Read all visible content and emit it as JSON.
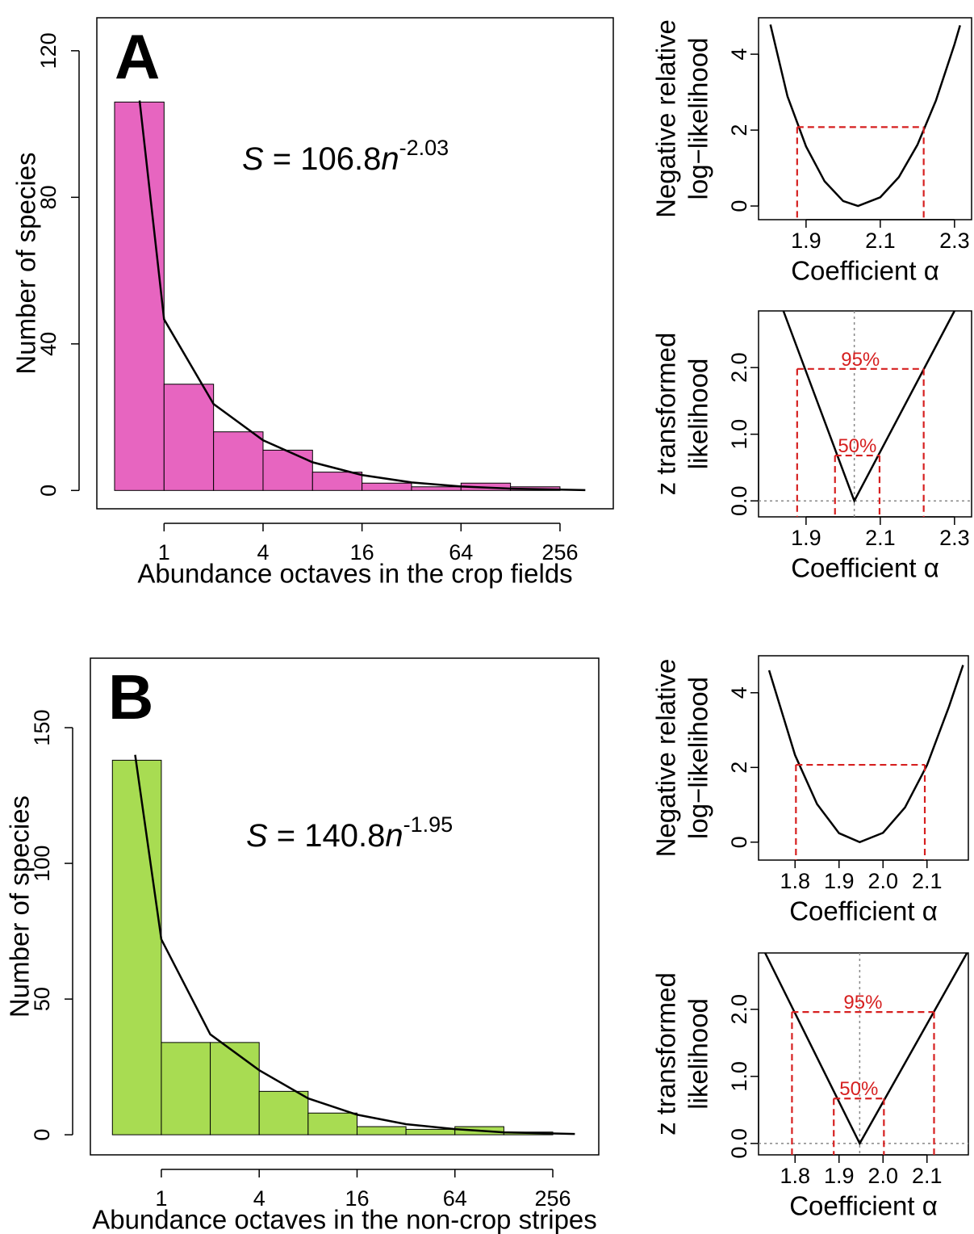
{
  "chart_data": [
    {
      "type": "histogram",
      "panel": "A",
      "ylabel": "Number of species",
      "xlabel": "Abundance octaves in the crop fields",
      "annotation": [
        "S",
        " = 106.8",
        "n",
        "-2.03"
      ],
      "bins": [
        0.5,
        1,
        2,
        4,
        8,
        16,
        32,
        64,
        128,
        256
      ],
      "values": [
        106,
        29,
        16,
        11,
        5,
        2,
        1,
        2,
        1
      ],
      "color": "#e765c0",
      "curve": {
        "x": [
          0.71,
          1,
          2,
          4,
          8,
          16,
          32,
          64,
          128,
          365
        ],
        "values": [
          106.4,
          46.7,
          23.6,
          13.7,
          7.7,
          4.2,
          2.2,
          1.1,
          0.5,
          0.1
        ],
        "color": "#000000"
      },
      "log_x": true,
      "xlim": [
        0.39,
        540
      ],
      "xticks": [
        1,
        4,
        16,
        64,
        256
      ],
      "ylim": [
        -5,
        129
      ],
      "yticks": [
        0,
        40,
        80,
        120
      ]
    },
    {
      "type": "line",
      "ylabel": [
        "Negative relative",
        "log−likelihood"
      ],
      "xlabel": "Coefficient α",
      "x": [
        1.804,
        1.85,
        1.9,
        1.95,
        2.0,
        2.04,
        2.1,
        2.15,
        2.2,
        2.25,
        2.3,
        2.315
      ],
      "values": [
        4.78,
        2.89,
        1.57,
        0.65,
        0.13,
        0,
        0.23,
        0.76,
        1.61,
        2.78,
        4.26,
        4.76
      ],
      "color": "#000000",
      "ci_color": "#d62020",
      "ci_lines": [
        {
          "y": 2.08,
          "x": [
            1.876,
            2.217
          ]
        }
      ],
      "xlim": [
        1.772,
        2.346
      ],
      "xticks": [
        1.9,
        2.1,
        2.3
      ],
      "ylim": [
        -0.36,
        4.96
      ],
      "yticks": [
        0,
        2,
        4
      ]
    },
    {
      "type": "line",
      "ylabel": [
        "z transformed",
        "likelihood"
      ],
      "xlabel": "Coefficient α",
      "x": [
        1.839,
        2.03,
        2.3
      ],
      "values": [
        2.85,
        0,
        2.85
      ],
      "color": "#000000",
      "ci_color": "#d62020",
      "ci_lines": [
        {
          "label": "95%",
          "y": 1.98,
          "x": [
            1.876,
            2.217
          ]
        },
        {
          "label": "50%",
          "y": 0.68,
          "x": [
            1.978,
            2.098
          ]
        }
      ],
      "center": 2.03,
      "ref_color": "#888888",
      "xlim": [
        1.772,
        2.346
      ],
      "xticks": [
        1.9,
        2.1,
        2.3
      ],
      "ylim": [
        -0.24,
        2.85
      ],
      "yticks": [
        {
          "value": 0,
          "label": "0.0"
        },
        {
          "value": 1,
          "label": "1.0"
        },
        {
          "value": 2,
          "label": "2.0"
        }
      ]
    },
    {
      "type": "histogram",
      "panel": "B",
      "ylabel": "Number of species",
      "xlabel": "Abundance octaves in the non-crop stripes",
      "annotation": [
        "S",
        " = 140.8",
        "n",
        "-1.95"
      ],
      "bins": [
        0.5,
        1,
        2,
        4,
        8,
        16,
        32,
        64,
        128,
        256
      ],
      "values": [
        138,
        34,
        34,
        16,
        8,
        3,
        2,
        3,
        1
      ],
      "color": "#a8dc52",
      "curve": {
        "x": [
          0.69,
          1,
          2,
          4,
          8,
          16,
          32,
          64,
          128,
          350
        ],
        "values": [
          140,
          72,
          37,
          23.8,
          13.4,
          7.4,
          3.9,
          2.1,
          0.9,
          0.3
        ],
        "color": "#000000"
      },
      "log_x": true,
      "xlim": [
        0.366,
        491
      ],
      "xticks": [
        1,
        4,
        16,
        64,
        256
      ],
      "ylim": [
        -7.4,
        175.6
      ],
      "yticks": [
        0,
        50,
        100,
        150
      ]
    },
    {
      "type": "line",
      "ylabel": [
        "Negative relative",
        "log−likelihood"
      ],
      "xlabel": "Coefficient α",
      "x": [
        1.741,
        1.8,
        1.85,
        1.9,
        1.947,
        2.0,
        2.05,
        2.1,
        2.15,
        2.182
      ],
      "values": [
        4.6,
        2.33,
        1.02,
        0.24,
        0,
        0.25,
        0.93,
        2.06,
        3.63,
        4.74
      ],
      "color": "#000000",
      "ci_color": "#d62020",
      "ci_lines": [
        {
          "y": 2.07,
          "x": [
            1.802,
            2.095
          ]
        }
      ],
      "xlim": [
        1.717,
        2.194
      ],
      "xticks": [
        1.8,
        1.9,
        {
          "value": 2,
          "label": "2.0"
        },
        2.1
      ],
      "ylim": [
        -0.48,
        4.99
      ],
      "yticks": [
        0,
        2,
        4
      ]
    },
    {
      "type": "line",
      "ylabel": [
        "z transformed",
        "likelihood"
      ],
      "xlabel": "Coefficient α",
      "x": [
        1.732,
        1.947,
        2.191
      ],
      "values": [
        2.84,
        0,
        2.84
      ],
      "color": "#000000",
      "ci_color": "#d62020",
      "ci_lines": [
        {
          "label": "95%",
          "y": 1.96,
          "x": [
            1.793,
            2.116
          ]
        },
        {
          "label": "50%",
          "y": 0.67,
          "x": [
            1.888,
            2.002
          ]
        }
      ],
      "center": 1.947,
      "ref_color": "#888888",
      "xlim": [
        1.717,
        2.194
      ],
      "xticks": [
        1.8,
        1.9,
        {
          "value": 2,
          "label": "2.0"
        },
        2.1
      ],
      "ylim": [
        -0.17,
        2.84
      ],
      "yticks": [
        {
          "value": 0,
          "label": "0.0"
        },
        {
          "value": 1,
          "label": "1.0"
        },
        {
          "value": 2,
          "label": "2.0"
        }
      ]
    }
  ]
}
